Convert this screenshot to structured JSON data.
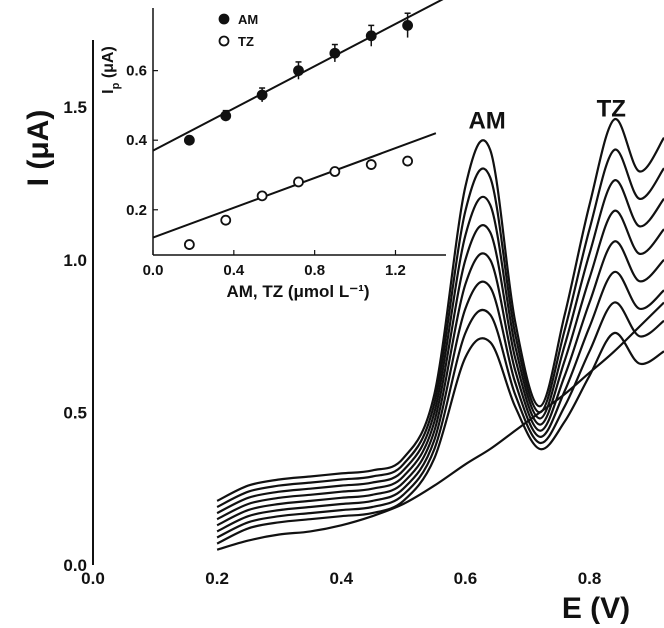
{
  "chart_data": [
    {
      "type": "line",
      "xlabel": "E (V)",
      "ylabel": "I (μA)",
      "xlim": [
        0.0,
        0.92
      ],
      "ylim": [
        0.0,
        1.72
      ],
      "x_ticks": [
        "0.0",
        "0.2",
        "0.4",
        "0.6",
        "0.8"
      ],
      "y_ticks": [
        "0.0",
        "0.5",
        "1.0",
        "1.5"
      ],
      "x_tick_values": [
        0.0,
        0.2,
        0.4,
        0.6,
        0.8
      ],
      "y_tick_values": [
        0.0,
        0.5,
        1.0,
        1.5
      ],
      "peak_labels": [
        {
          "text": "AM",
          "x": 0.635,
          "y": 1.43
        },
        {
          "text": "TZ",
          "x": 0.835,
          "y": 1.47
        }
      ],
      "series": [
        {
          "x": [
            0.2,
            0.25,
            0.3,
            0.35,
            0.4,
            0.45,
            0.5,
            0.55,
            0.6,
            0.64,
            0.68,
            0.72,
            0.76,
            0.8,
            0.84,
            0.88,
            0.92
          ],
          "y": [
            0.05,
            0.08,
            0.1,
            0.11,
            0.13,
            0.16,
            0.2,
            0.26,
            0.33,
            0.38,
            0.44,
            0.5,
            0.56,
            0.63,
            0.7,
            0.78,
            0.86
          ]
        },
        {
          "x": [
            0.2,
            0.25,
            0.3,
            0.35,
            0.4,
            0.45,
            0.5,
            0.55,
            0.6,
            0.64,
            0.68,
            0.72,
            0.76,
            0.8,
            0.84,
            0.88,
            0.92
          ],
          "y": [
            0.07,
            0.12,
            0.14,
            0.15,
            0.16,
            0.17,
            0.21,
            0.35,
            0.68,
            0.73,
            0.52,
            0.38,
            0.47,
            0.62,
            0.76,
            0.66,
            0.7
          ]
        },
        {
          "x": [
            0.2,
            0.25,
            0.3,
            0.35,
            0.4,
            0.45,
            0.5,
            0.55,
            0.6,
            0.64,
            0.68,
            0.72,
            0.76,
            0.8,
            0.84,
            0.88,
            0.92
          ],
          "y": [
            0.09,
            0.14,
            0.16,
            0.17,
            0.18,
            0.19,
            0.23,
            0.38,
            0.76,
            0.82,
            0.56,
            0.4,
            0.52,
            0.7,
            0.86,
            0.75,
            0.8
          ]
        },
        {
          "x": [
            0.2,
            0.25,
            0.3,
            0.35,
            0.4,
            0.45,
            0.5,
            0.55,
            0.6,
            0.64,
            0.68,
            0.72,
            0.76,
            0.8,
            0.84,
            0.88,
            0.92
          ],
          "y": [
            0.11,
            0.16,
            0.18,
            0.19,
            0.2,
            0.21,
            0.25,
            0.41,
            0.84,
            0.91,
            0.6,
            0.42,
            0.57,
            0.78,
            0.96,
            0.84,
            0.9
          ]
        },
        {
          "x": [
            0.2,
            0.25,
            0.3,
            0.35,
            0.4,
            0.45,
            0.5,
            0.55,
            0.6,
            0.64,
            0.68,
            0.72,
            0.76,
            0.8,
            0.84,
            0.88,
            0.92
          ],
          "y": [
            0.13,
            0.18,
            0.2,
            0.21,
            0.22,
            0.23,
            0.27,
            0.44,
            0.92,
            1.0,
            0.64,
            0.44,
            0.62,
            0.86,
            1.06,
            0.93,
            1.0
          ]
        },
        {
          "x": [
            0.2,
            0.25,
            0.3,
            0.35,
            0.4,
            0.45,
            0.5,
            0.55,
            0.6,
            0.64,
            0.68,
            0.72,
            0.76,
            0.8,
            0.84,
            0.88,
            0.92
          ],
          "y": [
            0.15,
            0.2,
            0.22,
            0.23,
            0.24,
            0.25,
            0.29,
            0.47,
            1.0,
            1.09,
            0.68,
            0.46,
            0.67,
            0.94,
            1.16,
            1.02,
            1.1
          ]
        },
        {
          "x": [
            0.2,
            0.25,
            0.3,
            0.35,
            0.4,
            0.45,
            0.5,
            0.55,
            0.6,
            0.64,
            0.68,
            0.72,
            0.76,
            0.8,
            0.84,
            0.88,
            0.92
          ],
          "y": [
            0.17,
            0.22,
            0.24,
            0.25,
            0.26,
            0.27,
            0.31,
            0.5,
            1.08,
            1.18,
            0.72,
            0.48,
            0.72,
            1.02,
            1.26,
            1.11,
            1.2
          ]
        },
        {
          "x": [
            0.2,
            0.25,
            0.3,
            0.35,
            0.4,
            0.45,
            0.5,
            0.55,
            0.6,
            0.64,
            0.68,
            0.72,
            0.76,
            0.8,
            0.84,
            0.88,
            0.92
          ],
          "y": [
            0.19,
            0.24,
            0.26,
            0.27,
            0.28,
            0.29,
            0.33,
            0.53,
            1.16,
            1.27,
            0.76,
            0.5,
            0.77,
            1.1,
            1.36,
            1.2,
            1.3
          ]
        },
        {
          "x": [
            0.2,
            0.25,
            0.3,
            0.35,
            0.4,
            0.45,
            0.5,
            0.55,
            0.6,
            0.64,
            0.68,
            0.72,
            0.76,
            0.8,
            0.84,
            0.88,
            0.92
          ],
          "y": [
            0.21,
            0.26,
            0.28,
            0.29,
            0.3,
            0.31,
            0.35,
            0.56,
            1.24,
            1.36,
            0.8,
            0.52,
            0.82,
            1.18,
            1.46,
            1.29,
            1.4
          ]
        }
      ]
    },
    {
      "type": "scatter",
      "xlabel": "AM, TZ (μmol L⁻¹)",
      "ylabel": "Ip (μA)",
      "xlim": [
        0.0,
        1.45
      ],
      "ylim": [
        0.07,
        0.78
      ],
      "x_ticks": [
        "0.0",
        "0.4",
        "0.8",
        "1.2"
      ],
      "y_ticks": [
        "0.2",
        "0.4",
        "0.6"
      ],
      "x_tick_values": [
        0.0,
        0.4,
        0.8,
        1.2
      ],
      "y_tick_values": [
        0.2,
        0.4,
        0.6
      ],
      "legend_position": "top-left",
      "series": [
        {
          "name": "AM",
          "marker": "filled-circle",
          "x": [
            0.18,
            0.36,
            0.54,
            0.72,
            0.9,
            1.08,
            1.26
          ],
          "y": [
            0.4,
            0.47,
            0.53,
            0.6,
            0.65,
            0.7,
            0.73
          ],
          "error": [
            0.01,
            0.015,
            0.02,
            0.025,
            0.025,
            0.03,
            0.035
          ],
          "fit": {
            "x": [
              0.0,
              1.45
            ],
            "y": [
              0.37,
              0.81
            ]
          }
        },
        {
          "name": "TZ",
          "marker": "open-circle",
          "x": [
            0.18,
            0.36,
            0.54,
            0.72,
            0.9,
            1.08,
            1.26
          ],
          "y": [
            0.1,
            0.17,
            0.24,
            0.28,
            0.31,
            0.33,
            0.34
          ],
          "error": [
            0.008,
            0.008,
            0.008,
            0.008,
            0.008,
            0.008,
            0.01
          ],
          "fit": {
            "x": [
              0.0,
              1.4
            ],
            "y": [
              0.12,
              0.42
            ]
          }
        }
      ]
    }
  ]
}
